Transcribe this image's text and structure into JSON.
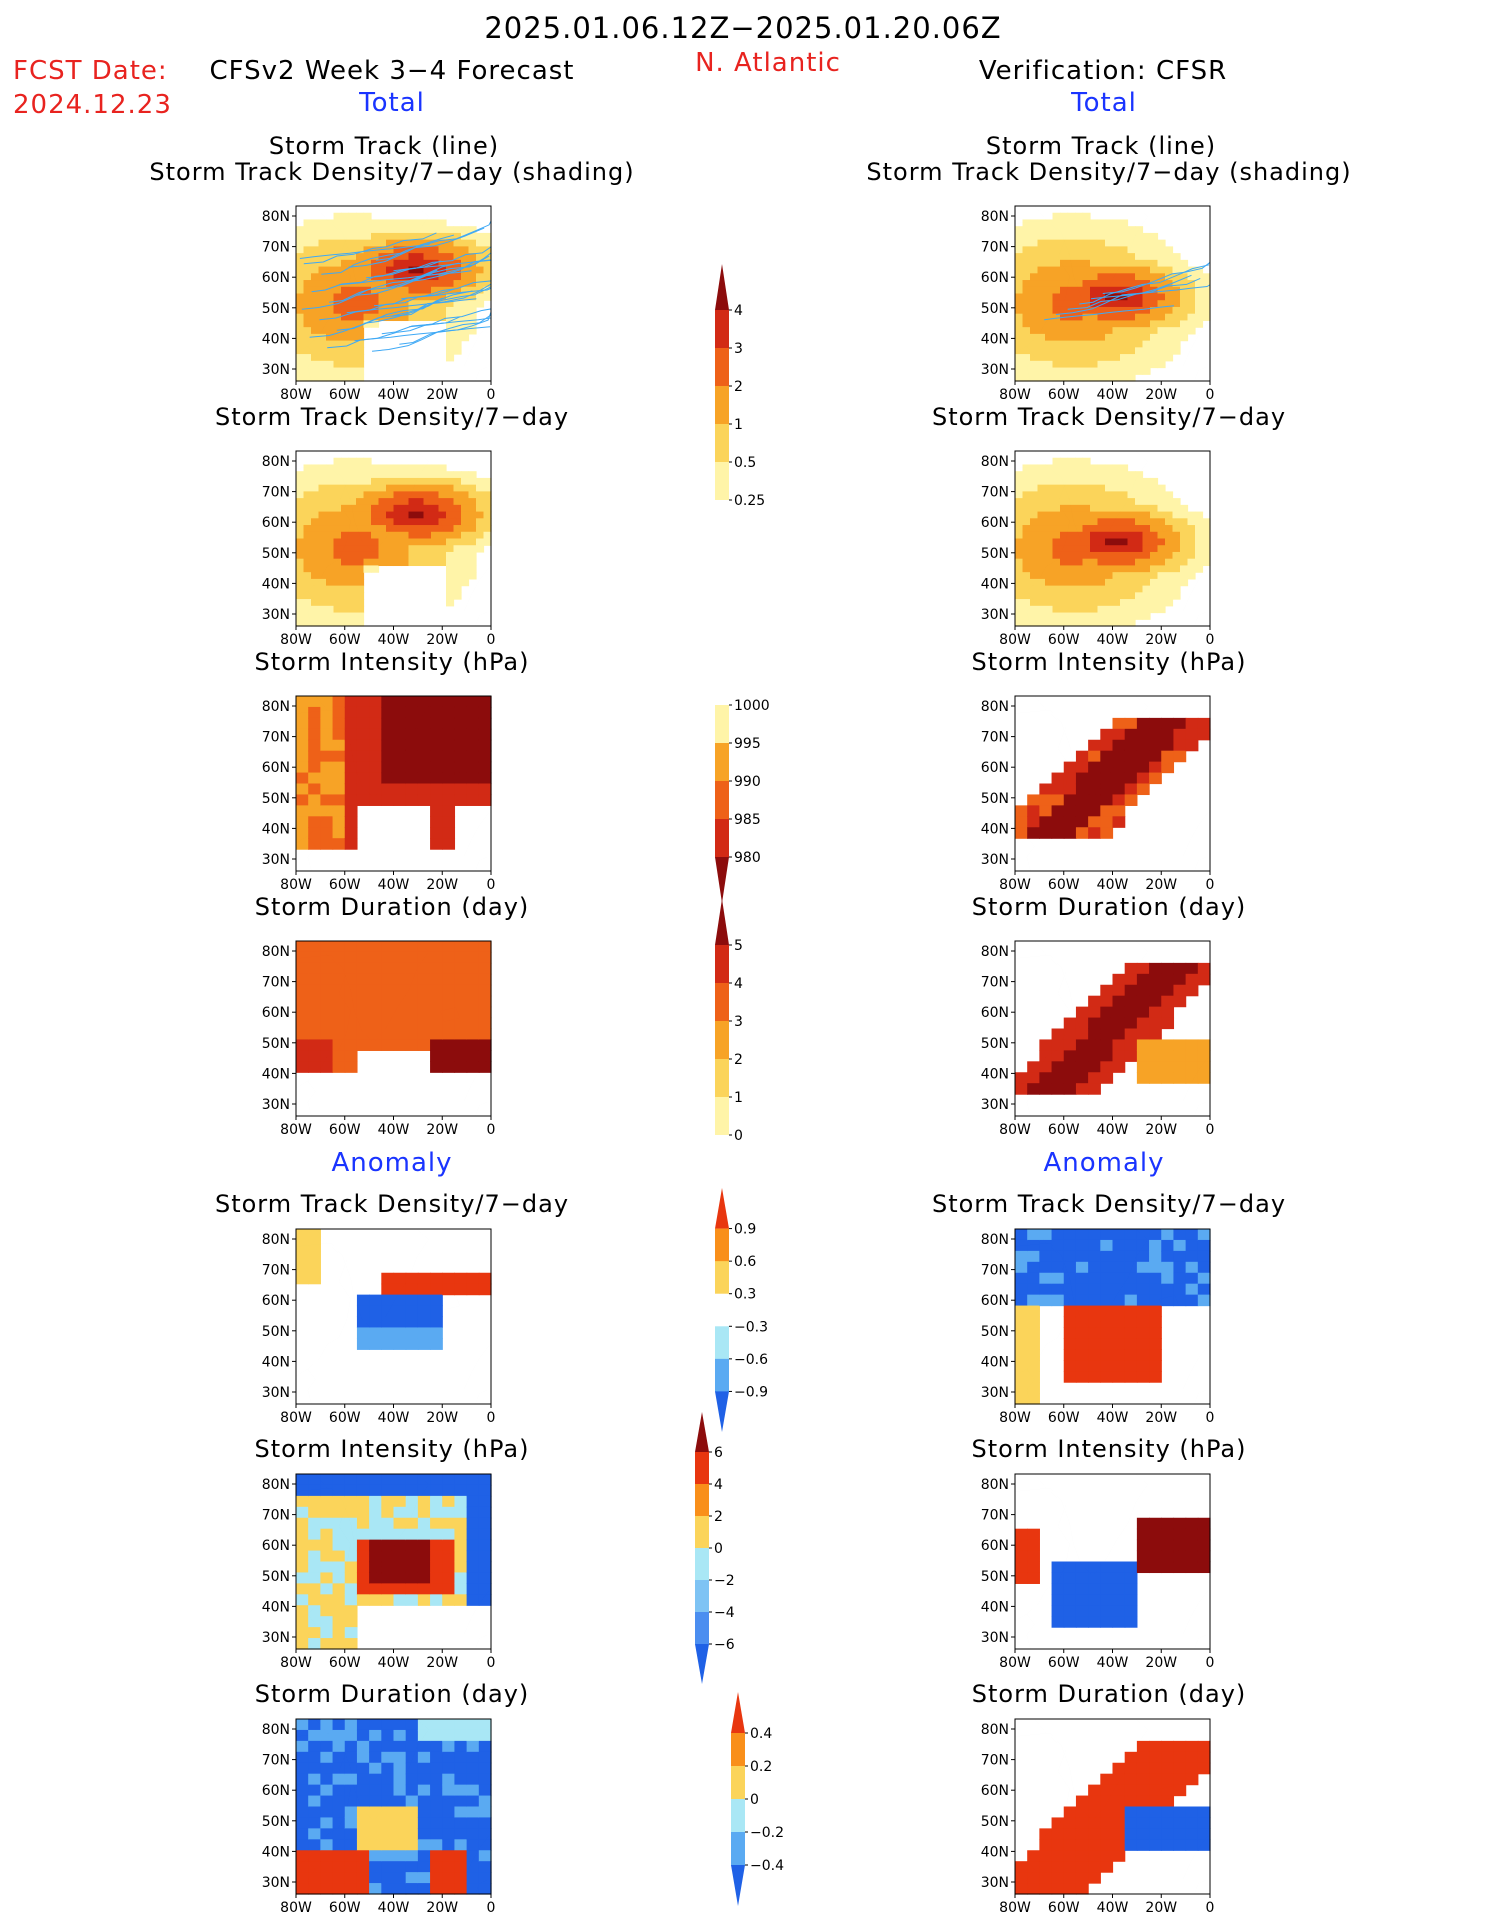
{
  "header": {
    "period": "2025.01.06.12Z−2025.01.20.06Z",
    "fcst_label": "FCST Date:",
    "fcst_date": "2024.12.23",
    "model": "CFSv2 Week 3−4 Forecast",
    "region": "N. Atlantic",
    "verification": "Verification: CFSR"
  },
  "sections": {
    "total": "Total",
    "anomaly": "Anomaly"
  },
  "axes": {
    "lat_ticks": [
      "80N",
      "70N",
      "60N",
      "50N",
      "40N",
      "30N"
    ],
    "lon_ticks": [
      "80W",
      "60W",
      "40W",
      "20W",
      "0"
    ]
  },
  "panel_titles": {
    "track_line": "Storm Track (line)",
    "track_shading": "Storm Track Density/7−day (shading)",
    "density": "Storm Track Density/7−day",
    "intensity": "Storm Intensity (hPa)",
    "duration": "Storm Duration (day)"
  },
  "colorbars": {
    "density_total": {
      "labels": [
        "4",
        "3",
        "2",
        "1",
        "0.5",
        "0.25"
      ],
      "colors": [
        "#8c0c0c",
        "#d22a15",
        "#ee6118",
        "#f7a326",
        "#fbd45a",
        "#fff4a8",
        "#ffffff"
      ]
    },
    "intensity_total": {
      "labels": [
        "1000",
        "995",
        "990",
        "985",
        "980"
      ],
      "colors": [
        "#ffffff",
        "#fff4a8",
        "#f7a326",
        "#ee6118",
        "#d22a15",
        "#8c0c0c"
      ]
    },
    "duration_total": {
      "labels": [
        "5",
        "4",
        "3",
        "2",
        "1",
        "0"
      ],
      "colors": [
        "#8c0c0c",
        "#d22a15",
        "#ee6118",
        "#f7a326",
        "#fbd45a",
        "#fff4a8",
        "#ffffff"
      ]
    },
    "density_anom": {
      "labels": [
        "0.9",
        "0.6",
        "0.3",
        "−0.3",
        "−0.6",
        "−0.9"
      ],
      "colors": [
        "#e8360f",
        "#f98f1a",
        "#fbd45a",
        "#ffffff",
        "#a9e7f5",
        "#5aaaf2",
        "#1f61e6"
      ]
    },
    "intensity_anom": {
      "labels": [
        "6",
        "4",
        "2",
        "0",
        "−2",
        "−4",
        "−6"
      ],
      "colors": [
        "#8c0c0c",
        "#e8360f",
        "#f98f1a",
        "#fbd45a",
        "#a9e7f5",
        "#7ec3f4",
        "#4b8ef0",
        "#1f61e6"
      ]
    },
    "duration_anom": {
      "labels": [
        "0.4",
        "0.2",
        "0",
        "−0.2",
        "−0.4"
      ],
      "colors": [
        "#e8360f",
        "#f98f1a",
        "#fbd45a",
        "#a9e7f5",
        "#5aaaf2",
        "#1f61e6"
      ]
    }
  },
  "colors": {
    "red_text": "#e8231f",
    "blue_text": "#1a34ff",
    "track_line": "#3fa9f5"
  }
}
